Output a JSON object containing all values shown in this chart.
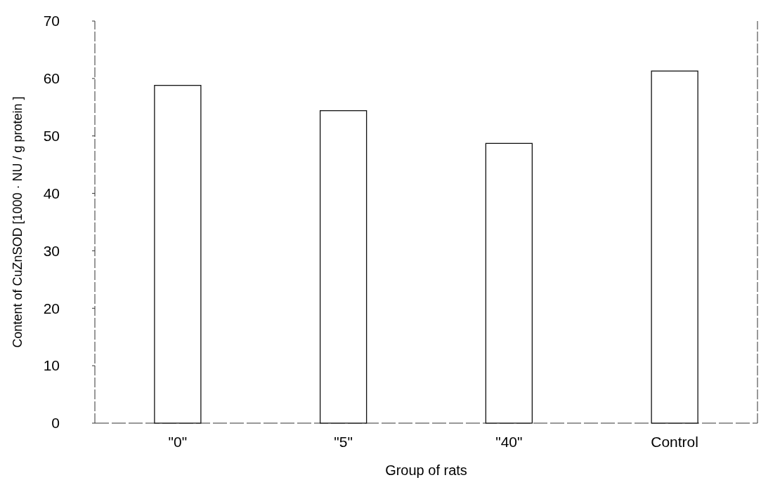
{
  "chart_data": {
    "type": "bar",
    "xlabel": "Group of rats",
    "ylabel": "Content of CuZnSOD  [1000 · NU / g protein ]",
    "categories": [
      "\"0\"",
      "\"5\"",
      "\"40\"",
      "Control"
    ],
    "values": [
      58.8,
      54.4,
      48.7,
      61.3
    ],
    "color": "#ffffff",
    "ylim": [
      0,
      70
    ],
    "yticks": [
      0,
      10,
      20,
      30,
      40,
      50,
      60,
      70
    ],
    "grid": false
  }
}
